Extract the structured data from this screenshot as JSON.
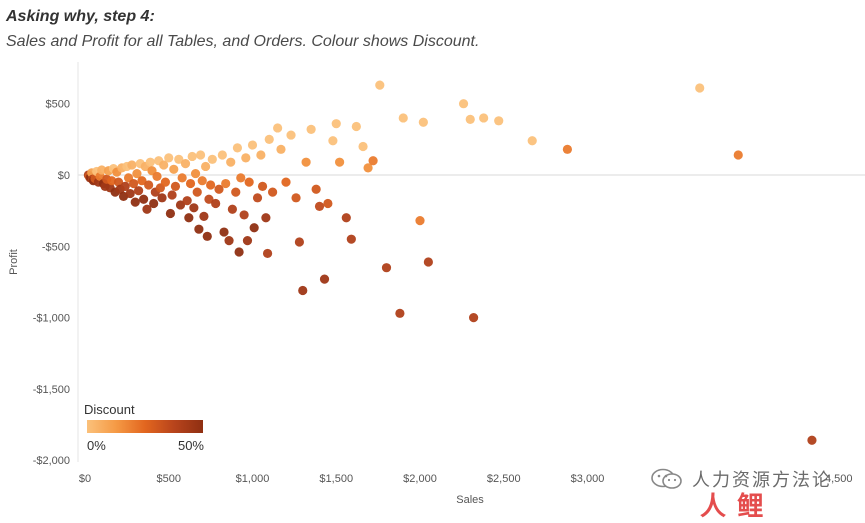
{
  "title": "Asking why, step 4:",
  "subtitle": "Sales and Profit for all Tables, and Orders. Colour shows Discount.",
  "legend": {
    "title": "Discount",
    "min_label": "0%",
    "max_label": "50%",
    "colors": [
      "#fbc17b",
      "#f59a45",
      "#e2661f",
      "#b8441c",
      "#8f2f12"
    ]
  },
  "watermark": {
    "text": "人力资源方法论",
    "logo_text": "人 鲤"
  },
  "chart_data": {
    "type": "scatter",
    "title": "Asking why, step 4:",
    "subtitle": "Sales and Profit for all Tables, and Orders. Colour shows Discount.",
    "xlabel": "Sales",
    "ylabel": "Profit",
    "xlim": [
      0,
      4500
    ],
    "ylim": [
      -2000,
      700
    ],
    "x_ticks": [
      0,
      500,
      1000,
      1500,
      2000,
      2500,
      3000,
      3500,
      4000,
      4500
    ],
    "x_tick_labels": [
      "$0",
      "$500",
      "$1,000",
      "$1,500",
      "$2,000",
      "$2,500",
      "$3,000",
      "",
      "",
      "4,500"
    ],
    "y_ticks": [
      500,
      0,
      -500,
      -1000,
      -1500,
      -2000
    ],
    "y_tick_labels": [
      "$500",
      "$0",
      "-$500",
      "-$1,000",
      "-$1,500",
      "-$2,000"
    ],
    "color_by": "Discount",
    "discount_range": [
      0,
      0.5
    ],
    "points": [
      {
        "x": 20,
        "y": 0,
        "d": 0.4
      },
      {
        "x": 25,
        "y": -10,
        "d": 0.3
      },
      {
        "x": 30,
        "y": -20,
        "d": 0.45
      },
      {
        "x": 35,
        "y": -15,
        "d": 0.5
      },
      {
        "x": 40,
        "y": 15,
        "d": 0.1
      },
      {
        "x": 45,
        "y": -30,
        "d": 0.4
      },
      {
        "x": 50,
        "y": -40,
        "d": 0.5
      },
      {
        "x": 60,
        "y": -25,
        "d": 0.3
      },
      {
        "x": 70,
        "y": 25,
        "d": 0.0
      },
      {
        "x": 80,
        "y": -50,
        "d": 0.45
      },
      {
        "x": 90,
        "y": -10,
        "d": 0.2
      },
      {
        "x": 100,
        "y": 35,
        "d": 0.05
      },
      {
        "x": 110,
        "y": -60,
        "d": 0.5
      },
      {
        "x": 120,
        "y": -80,
        "d": 0.45
      },
      {
        "x": 130,
        "y": -30,
        "d": 0.3
      },
      {
        "x": 140,
        "y": 30,
        "d": 0.1
      },
      {
        "x": 150,
        "y": -90,
        "d": 0.45
      },
      {
        "x": 160,
        "y": -40,
        "d": 0.25
      },
      {
        "x": 170,
        "y": 45,
        "d": 0.0
      },
      {
        "x": 180,
        "y": -120,
        "d": 0.5
      },
      {
        "x": 190,
        "y": 20,
        "d": 0.15
      },
      {
        "x": 200,
        "y": -50,
        "d": 0.3
      },
      {
        "x": 210,
        "y": -100,
        "d": 0.45
      },
      {
        "x": 220,
        "y": 50,
        "d": 0.05
      },
      {
        "x": 230,
        "y": -150,
        "d": 0.5
      },
      {
        "x": 240,
        "y": -80,
        "d": 0.4
      },
      {
        "x": 250,
        "y": 60,
        "d": 0.0
      },
      {
        "x": 260,
        "y": -20,
        "d": 0.2
      },
      {
        "x": 270,
        "y": -130,
        "d": 0.45
      },
      {
        "x": 280,
        "y": 70,
        "d": 0.05
      },
      {
        "x": 290,
        "y": -60,
        "d": 0.3
      },
      {
        "x": 300,
        "y": -190,
        "d": 0.5
      },
      {
        "x": 310,
        "y": 10,
        "d": 0.15
      },
      {
        "x": 320,
        "y": -110,
        "d": 0.4
      },
      {
        "x": 330,
        "y": 80,
        "d": 0.0
      },
      {
        "x": 340,
        "y": -40,
        "d": 0.25
      },
      {
        "x": 350,
        "y": -170,
        "d": 0.5
      },
      {
        "x": 360,
        "y": 60,
        "d": 0.05
      },
      {
        "x": 370,
        "y": -240,
        "d": 0.45
      },
      {
        "x": 380,
        "y": -70,
        "d": 0.3
      },
      {
        "x": 390,
        "y": 90,
        "d": 0.0
      },
      {
        "x": 400,
        "y": 30,
        "d": 0.15
      },
      {
        "x": 410,
        "y": -200,
        "d": 0.5
      },
      {
        "x": 420,
        "y": -120,
        "d": 0.4
      },
      {
        "x": 430,
        "y": -10,
        "d": 0.2
      },
      {
        "x": 440,
        "y": 100,
        "d": 0.0
      },
      {
        "x": 450,
        "y": -90,
        "d": 0.3
      },
      {
        "x": 460,
        "y": -160,
        "d": 0.45
      },
      {
        "x": 470,
        "y": 70,
        "d": 0.05
      },
      {
        "x": 480,
        "y": -50,
        "d": 0.25
      },
      {
        "x": 500,
        "y": 120,
        "d": 0.0
      },
      {
        "x": 510,
        "y": -270,
        "d": 0.5
      },
      {
        "x": 520,
        "y": -140,
        "d": 0.4
      },
      {
        "x": 530,
        "y": 40,
        "d": 0.1
      },
      {
        "x": 540,
        "y": -80,
        "d": 0.3
      },
      {
        "x": 560,
        "y": 110,
        "d": 0.0
      },
      {
        "x": 570,
        "y": -210,
        "d": 0.45
      },
      {
        "x": 580,
        "y": -20,
        "d": 0.2
      },
      {
        "x": 600,
        "y": 80,
        "d": 0.05
      },
      {
        "x": 610,
        "y": -180,
        "d": 0.4
      },
      {
        "x": 620,
        "y": -300,
        "d": 0.5
      },
      {
        "x": 630,
        "y": -60,
        "d": 0.25
      },
      {
        "x": 640,
        "y": 130,
        "d": 0.0
      },
      {
        "x": 650,
        "y": -230,
        "d": 0.45
      },
      {
        "x": 660,
        "y": 10,
        "d": 0.15
      },
      {
        "x": 670,
        "y": -120,
        "d": 0.3
      },
      {
        "x": 680,
        "y": -380,
        "d": 0.5
      },
      {
        "x": 690,
        "y": 140,
        "d": 0.0
      },
      {
        "x": 700,
        "y": -40,
        "d": 0.2
      },
      {
        "x": 710,
        "y": -290,
        "d": 0.45
      },
      {
        "x": 720,
        "y": 60,
        "d": 0.05
      },
      {
        "x": 730,
        "y": -430,
        "d": 0.5
      },
      {
        "x": 740,
        "y": -170,
        "d": 0.35
      },
      {
        "x": 750,
        "y": -70,
        "d": 0.25
      },
      {
        "x": 760,
        "y": 110,
        "d": 0.0
      },
      {
        "x": 780,
        "y": -200,
        "d": 0.4
      },
      {
        "x": 800,
        "y": -100,
        "d": 0.3
      },
      {
        "x": 820,
        "y": 140,
        "d": 0.0
      },
      {
        "x": 830,
        "y": -400,
        "d": 0.5
      },
      {
        "x": 840,
        "y": -60,
        "d": 0.2
      },
      {
        "x": 860,
        "y": -460,
        "d": 0.45
      },
      {
        "x": 870,
        "y": 90,
        "d": 0.05
      },
      {
        "x": 880,
        "y": -240,
        "d": 0.4
      },
      {
        "x": 900,
        "y": -120,
        "d": 0.3
      },
      {
        "x": 910,
        "y": 190,
        "d": 0.0
      },
      {
        "x": 920,
        "y": -540,
        "d": 0.5
      },
      {
        "x": 930,
        "y": -20,
        "d": 0.2
      },
      {
        "x": 950,
        "y": -280,
        "d": 0.4
      },
      {
        "x": 960,
        "y": 120,
        "d": 0.05
      },
      {
        "x": 970,
        "y": -460,
        "d": 0.45
      },
      {
        "x": 980,
        "y": -50,
        "d": 0.25
      },
      {
        "x": 1000,
        "y": 210,
        "d": 0.0
      },
      {
        "x": 1010,
        "y": -370,
        "d": 0.5
      },
      {
        "x": 1030,
        "y": -160,
        "d": 0.35
      },
      {
        "x": 1050,
        "y": 140,
        "d": 0.05
      },
      {
        "x": 1060,
        "y": -80,
        "d": 0.3
      },
      {
        "x": 1080,
        "y": -300,
        "d": 0.45
      },
      {
        "x": 1090,
        "y": -550,
        "d": 0.4
      },
      {
        "x": 1100,
        "y": 250,
        "d": 0.0
      },
      {
        "x": 1120,
        "y": -120,
        "d": 0.3
      },
      {
        "x": 1150,
        "y": 330,
        "d": 0.0
      },
      {
        "x": 1170,
        "y": 180,
        "d": 0.05
      },
      {
        "x": 1200,
        "y": -50,
        "d": 0.25
      },
      {
        "x": 1230,
        "y": 280,
        "d": 0.0
      },
      {
        "x": 1260,
        "y": -160,
        "d": 0.3
      },
      {
        "x": 1280,
        "y": -470,
        "d": 0.4
      },
      {
        "x": 1300,
        "y": -810,
        "d": 0.45
      },
      {
        "x": 1320,
        "y": 90,
        "d": 0.15
      },
      {
        "x": 1350,
        "y": 320,
        "d": 0.0
      },
      {
        "x": 1380,
        "y": -100,
        "d": 0.3
      },
      {
        "x": 1400,
        "y": -220,
        "d": 0.35
      },
      {
        "x": 1430,
        "y": -730,
        "d": 0.45
      },
      {
        "x": 1450,
        "y": -200,
        "d": 0.3
      },
      {
        "x": 1480,
        "y": 240,
        "d": 0.0
      },
      {
        "x": 1500,
        "y": 360,
        "d": 0.0
      },
      {
        "x": 1520,
        "y": 90,
        "d": 0.15
      },
      {
        "x": 1560,
        "y": -300,
        "d": 0.4
      },
      {
        "x": 1590,
        "y": -450,
        "d": 0.4
      },
      {
        "x": 1620,
        "y": 340,
        "d": 0.0
      },
      {
        "x": 1660,
        "y": 200,
        "d": 0.0
      },
      {
        "x": 1690,
        "y": 50,
        "d": 0.15
      },
      {
        "x": 1720,
        "y": 100,
        "d": 0.2
      },
      {
        "x": 1760,
        "y": 630,
        "d": 0.0
      },
      {
        "x": 1800,
        "y": -650,
        "d": 0.4
      },
      {
        "x": 1880,
        "y": -970,
        "d": 0.4
      },
      {
        "x": 1900,
        "y": 400,
        "d": 0.0
      },
      {
        "x": 2000,
        "y": -320,
        "d": 0.2
      },
      {
        "x": 2020,
        "y": 370,
        "d": 0.0
      },
      {
        "x": 2050,
        "y": -610,
        "d": 0.4
      },
      {
        "x": 2260,
        "y": 500,
        "d": 0.0
      },
      {
        "x": 2300,
        "y": 390,
        "d": 0.0
      },
      {
        "x": 2320,
        "y": -1000,
        "d": 0.4
      },
      {
        "x": 2380,
        "y": 400,
        "d": 0.0
      },
      {
        "x": 2470,
        "y": 380,
        "d": 0.0
      },
      {
        "x": 2670,
        "y": 240,
        "d": 0.0
      },
      {
        "x": 2880,
        "y": 180,
        "d": 0.2
      },
      {
        "x": 3670,
        "y": 610,
        "d": 0.0
      },
      {
        "x": 3900,
        "y": 140,
        "d": 0.2
      },
      {
        "x": 4340,
        "y": -1860,
        "d": 0.4
      }
    ]
  }
}
